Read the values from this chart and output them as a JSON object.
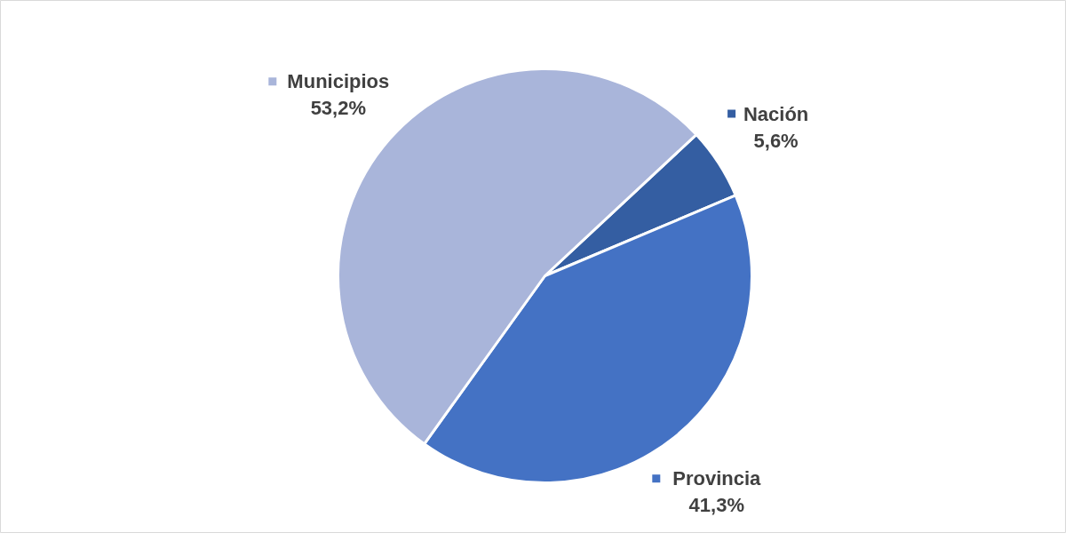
{
  "chart_data": {
    "type": "pie",
    "categories": [
      "Nación",
      "Provincia",
      "Municipios"
    ],
    "values": [
      5.6,
      41.3,
      53.2
    ],
    "colors": [
      "#345ea2",
      "#4472c4",
      "#a9b5da"
    ],
    "value_labels": [
      "5,6%",
      "41,3%",
      "53,2%"
    ],
    "legend": "right"
  }
}
